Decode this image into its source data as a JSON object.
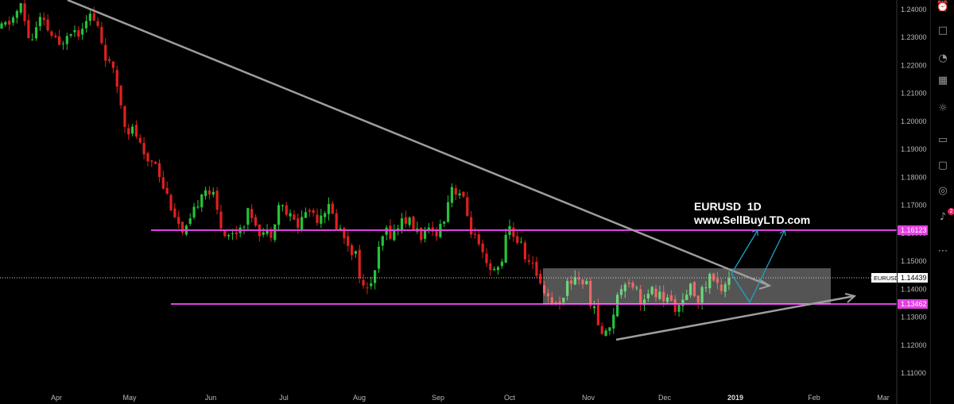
{
  "chart_data": {
    "type": "candlestick",
    "title": "EURUSD  1D",
    "subtitle": "www.SellBuyLTD.com",
    "symbol": "EURUSD",
    "current_price": "1.14439",
    "x_labels": [
      "Apr",
      "May",
      "Jun",
      "Jul",
      "Aug",
      "Sep",
      "Oct",
      "Nov",
      "Dec",
      "2019",
      "Feb",
      "Mar"
    ],
    "y_ticks": [
      "1.24000",
      "1.23000",
      "1.22000",
      "1.21000",
      "1.20000",
      "1.19000",
      "1.18000",
      "1.17000",
      "1.16000",
      "1.15000",
      "1.14000",
      "1.13000",
      "1.12000",
      "1.11000"
    ],
    "ylim": [
      1.105,
      1.2435
    ],
    "price_path": [
      1.233,
      1.236,
      1.241,
      1.228,
      1.236,
      1.232,
      1.226,
      1.234,
      1.232,
      1.239,
      1.234,
      1.222,
      1.214,
      1.198,
      1.196,
      1.185,
      1.187,
      1.176,
      1.168,
      1.158,
      1.166,
      1.177,
      1.174,
      1.162,
      1.159,
      1.163,
      1.168,
      1.161,
      1.159,
      1.171,
      1.166,
      1.163,
      1.169,
      1.166,
      1.17,
      1.163,
      1.158,
      1.152,
      1.137,
      1.147,
      1.161,
      1.16,
      1.166,
      1.162,
      1.159,
      1.16,
      1.163,
      1.177,
      1.174,
      1.162,
      1.153,
      1.145,
      1.148,
      1.162,
      1.157,
      1.15,
      1.145,
      1.138,
      1.134,
      1.141,
      1.145,
      1.142,
      1.131,
      1.122,
      1.133,
      1.144,
      1.142,
      1.135,
      1.139,
      1.137,
      1.135,
      1.133,
      1.14,
      1.137,
      1.145,
      1.14,
      1.145
    ],
    "horizontal_levels": [
      {
        "value": 1.16123,
        "label": "1.16123",
        "color": "#e040e0"
      },
      {
        "value": 1.13462,
        "label": "1.13462",
        "color": "#e040e0"
      }
    ],
    "consolidation_zone": {
      "from": 1.1354,
      "to": 1.1482
    },
    "colors": {
      "up": "#26c23a",
      "down": "#e0201f",
      "trendline": "#9e9e9e",
      "arrow": "#1fa3c4",
      "level": "#e040e0",
      "current_label_bg": "#ffffff"
    }
  },
  "toolbar": {
    "icons": [
      "alarm-clock-icon",
      "chat-icon",
      "ideas-icon",
      "calendar-icon",
      "lightbulb-icon",
      "chats-icon",
      "speech-bubble-icon",
      "streams-icon",
      "alerts-bell-icon",
      "more-dots-icon"
    ],
    "alert_count": "2"
  }
}
